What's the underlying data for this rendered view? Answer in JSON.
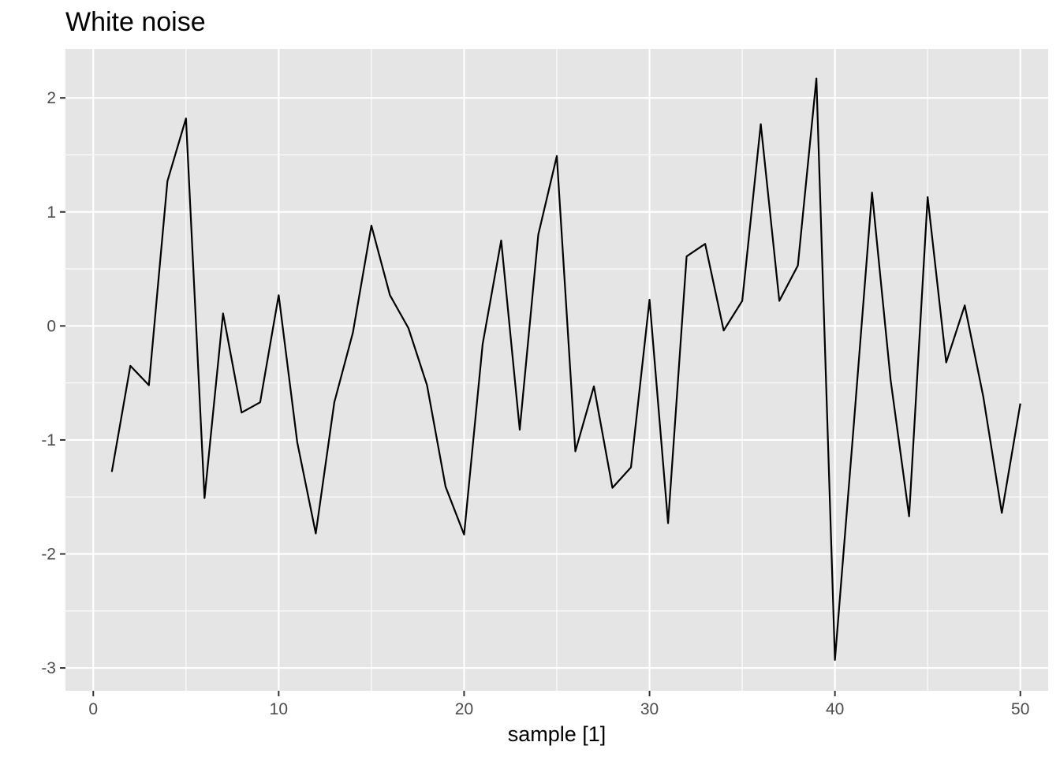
{
  "chart_data": {
    "type": "line",
    "title": "White noise",
    "xlabel": "sample [1]",
    "ylabel": "",
    "xlim": [
      -1.5,
      51.5
    ],
    "ylim": [
      -3.2,
      2.43
    ],
    "x_ticks": [
      0,
      10,
      20,
      30,
      40,
      50
    ],
    "x_tick_labels": [
      "0",
      "10",
      "20",
      "30",
      "40",
      "50"
    ],
    "x_minor_ticks": [
      5,
      15,
      25,
      35,
      45
    ],
    "y_ticks": [
      -3,
      -2,
      -1,
      0,
      1,
      2
    ],
    "y_tick_labels": [
      "-3",
      "-2",
      "-1",
      "0",
      "1",
      "2"
    ],
    "y_minor_ticks": [
      -2.5,
      -1.5,
      -0.5,
      0.5,
      1.5
    ],
    "grid": true,
    "panel_background": "#e5e5e5",
    "grid_color": "#ffffff",
    "line_color": "#000000",
    "series": [
      {
        "x": [
          1,
          2,
          3,
          4,
          5,
          6,
          7,
          8,
          9,
          10,
          11,
          12,
          13,
          14,
          15,
          16,
          17,
          18,
          19,
          20,
          21,
          22,
          23,
          24,
          25,
          26,
          27,
          28,
          29,
          30,
          31,
          32,
          33,
          34,
          35,
          36,
          37,
          38,
          39,
          40,
          41,
          42,
          43,
          44,
          45,
          46,
          47,
          48,
          49,
          50
        ],
        "values": [
          -1.28,
          -0.35,
          -0.52,
          1.27,
          1.82,
          -1.51,
          0.11,
          -0.76,
          -0.67,
          0.27,
          -1.02,
          -1.82,
          -0.67,
          -0.06,
          0.88,
          0.27,
          -0.02,
          -0.52,
          -1.41,
          -1.83,
          -0.16,
          0.75,
          -0.91,
          0.8,
          1.49,
          -1.1,
          -0.53,
          -1.42,
          -1.24,
          0.23,
          -1.73,
          0.61,
          0.72,
          -0.04,
          0.22,
          1.77,
          0.22,
          0.53,
          2.17,
          -2.93,
          -0.9,
          1.17,
          -0.47,
          -1.67,
          1.13,
          -0.32,
          0.18,
          -0.62,
          -1.64,
          -0.68
        ]
      }
    ]
  }
}
